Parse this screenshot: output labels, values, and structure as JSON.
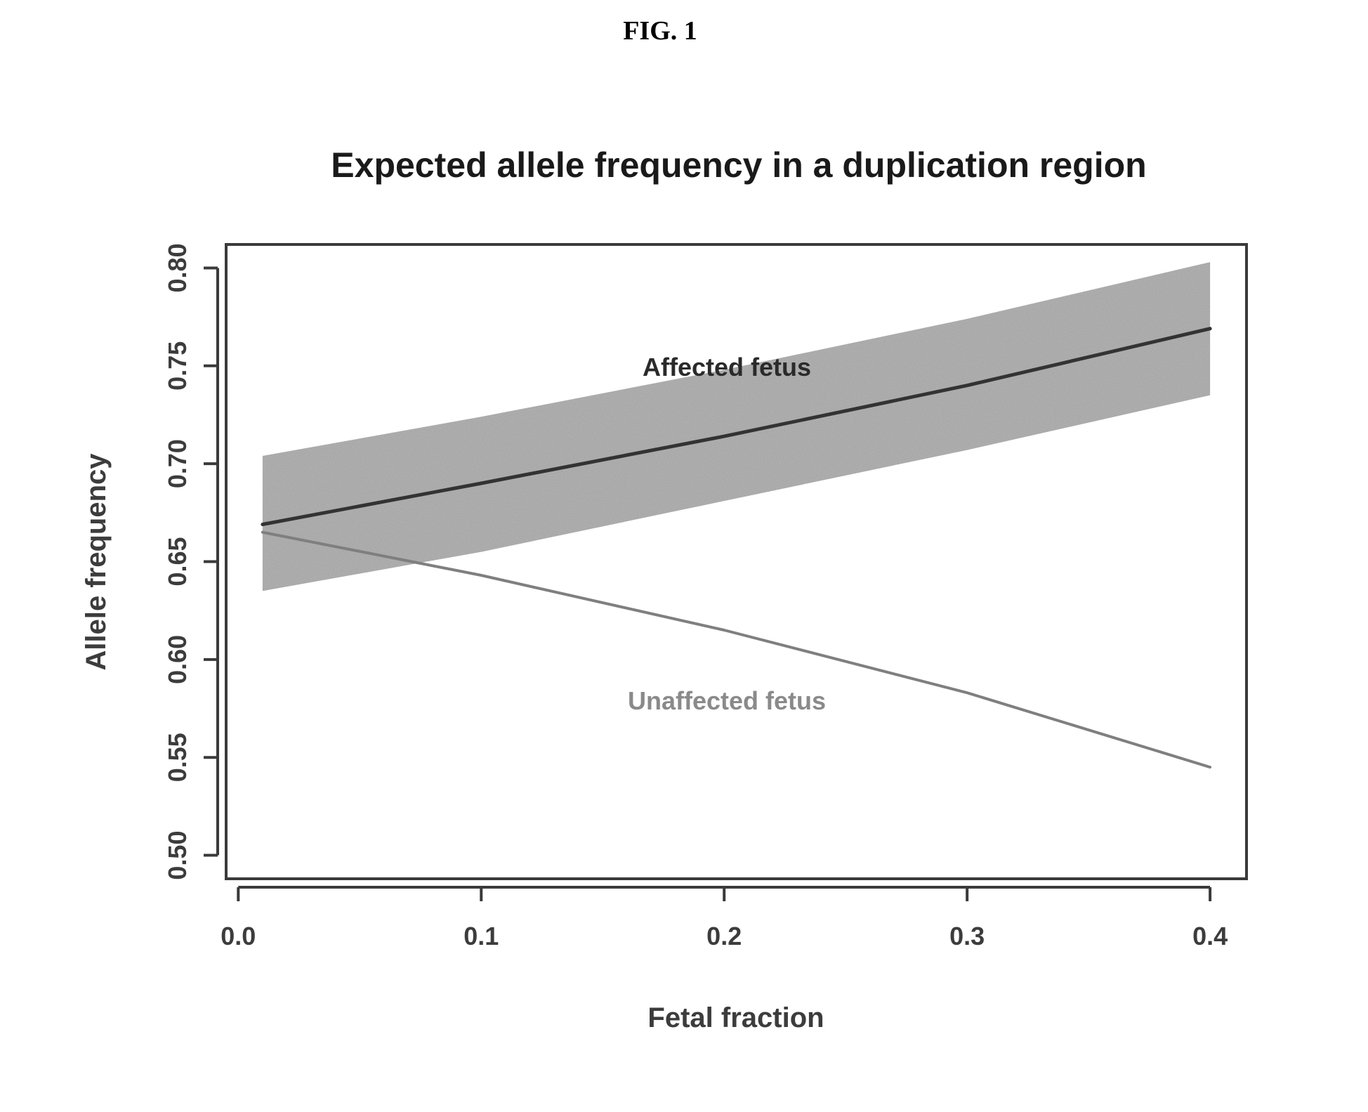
{
  "figure_label": "FIG. 1",
  "chart_data": {
    "type": "line",
    "title": "Expected allele frequency in a duplication region",
    "xlabel": "Fetal fraction",
    "ylabel": "Allele frequency",
    "xlim": [
      -0.005,
      0.415
    ],
    "ylim": [
      0.488,
      0.812
    ],
    "xticks": [
      0.0,
      0.1,
      0.2,
      0.3,
      0.4
    ],
    "xtick_labels": [
      "0.0",
      "0.1",
      "0.2",
      "0.3",
      "0.4"
    ],
    "yticks": [
      0.5,
      0.55,
      0.6,
      0.65,
      0.7,
      0.75,
      0.8
    ],
    "ytick_labels": [
      "0.50",
      "0.55",
      "0.60",
      "0.65",
      "0.70",
      "0.75",
      "0.80"
    ],
    "grid": false,
    "series": [
      {
        "name": "Affected fetus",
        "color": "#333333",
        "x": [
          0.01,
          0.1,
          0.2,
          0.3,
          0.4
        ],
        "y": [
          0.669,
          0.69,
          0.714,
          0.74,
          0.769
        ],
        "band_lower": [
          0.635,
          0.655,
          0.681,
          0.707,
          0.735
        ],
        "band_upper": [
          0.704,
          0.724,
          0.748,
          0.774,
          0.803
        ]
      },
      {
        "name": "Unaffected fetus",
        "color": "#7f7f7f",
        "x": [
          0.01,
          0.1,
          0.2,
          0.3,
          0.4
        ],
        "y": [
          0.665,
          0.643,
          0.615,
          0.583,
          0.545
        ]
      }
    ]
  }
}
